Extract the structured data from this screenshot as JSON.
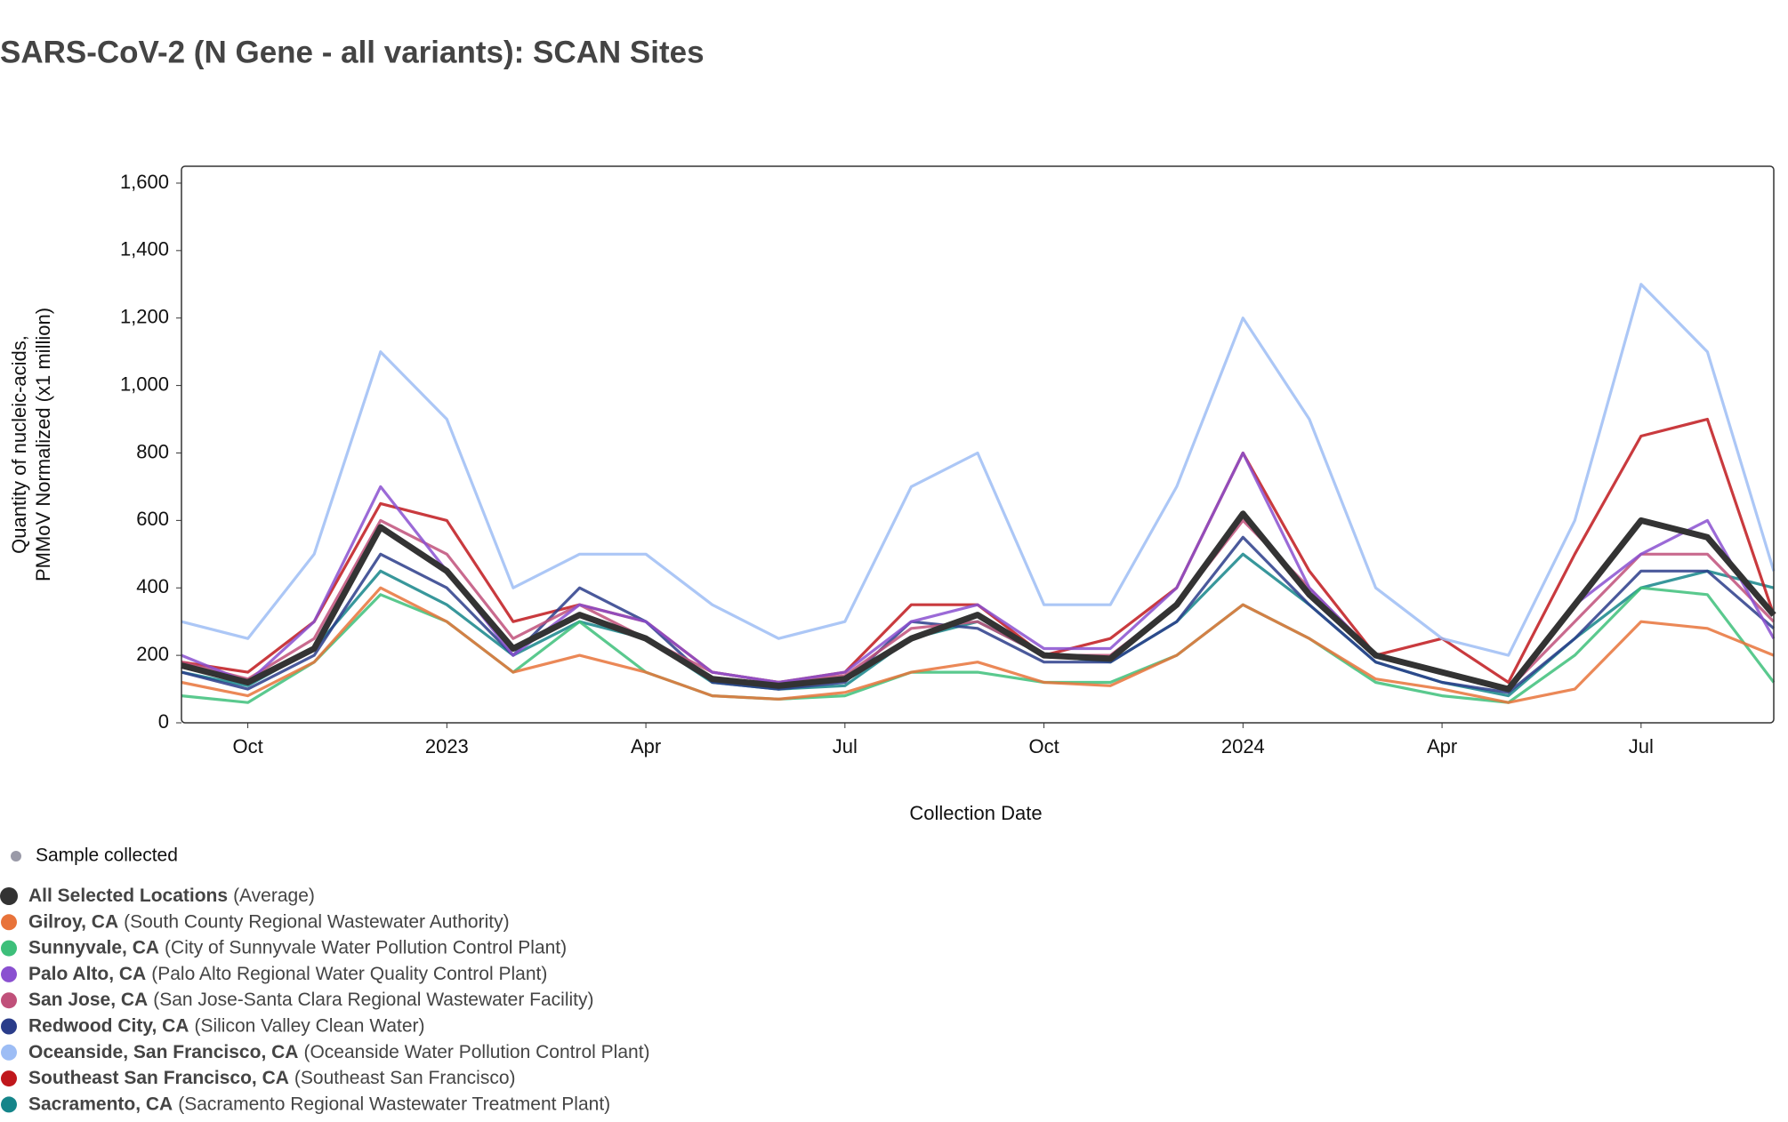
{
  "chart_data": {
    "type": "line",
    "title": "SARS-CoV-2 (N Gene - all variants): SCAN Sites",
    "x_label": "Collection Date",
    "y_label": [
      "Quantity of nucleic-acids,",
      "PMMoV Normalized (x1 million)"
    ],
    "marker_legend": "Sample collected",
    "x": [
      "2022-09",
      "2022-10",
      "2022-11",
      "2022-12",
      "2023-01",
      "2023-02",
      "2023-03",
      "2023-04",
      "2023-05",
      "2023-06",
      "2023-07",
      "2023-08",
      "2023-09",
      "2023-10",
      "2023-11",
      "2023-12",
      "2024-01",
      "2024-02",
      "2024-03",
      "2024-04",
      "2024-05",
      "2024-06",
      "2024-07",
      "2024-08",
      "2024-09"
    ],
    "xlim": [
      "2022-09",
      "2024-09"
    ],
    "xticks": [
      {
        "value": "2022-10",
        "label": "Oct"
      },
      {
        "value": "2023-01",
        "label": "2023"
      },
      {
        "value": "2023-04",
        "label": "Apr"
      },
      {
        "value": "2023-07",
        "label": "Jul"
      },
      {
        "value": "2023-10",
        "label": "Oct"
      },
      {
        "value": "2024-01",
        "label": "2024"
      },
      {
        "value": "2024-04",
        "label": "Apr"
      },
      {
        "value": "2024-07",
        "label": "Jul"
      }
    ],
    "ylim": [
      0,
      1650
    ],
    "yticks": [
      0,
      200,
      400,
      600,
      800,
      {
        "value": 1000,
        "label": "1,000"
      },
      {
        "value": 1200,
        "label": "1,200"
      },
      {
        "value": 1400,
        "label": "1,400"
      },
      {
        "value": 1600,
        "label": "1,600"
      }
    ],
    "grid": false,
    "series": [
      {
        "name": "All Selected Locations",
        "detail": "(Average)",
        "color": "#333333",
        "values": [
          170,
          120,
          220,
          580,
          450,
          220,
          320,
          250,
          130,
          110,
          130,
          250,
          320,
          200,
          190,
          350,
          620,
          380,
          200,
          150,
          100,
          350,
          600,
          550,
          320
        ]
      },
      {
        "name": "Gilroy, CA",
        "detail": "(South County Regional Wastewater Authority)",
        "color": "#e8733a",
        "values": [
          120,
          80,
          180,
          400,
          300,
          150,
          200,
          150,
          80,
          70,
          90,
          150,
          180,
          120,
          110,
          200,
          350,
          250,
          130,
          100,
          60,
          100,
          300,
          280,
          200
        ]
      },
      {
        "name": "Sunnyvale, CA",
        "detail": "(City of Sunnyvale Water Pollution Control Plant)",
        "color": "#3dbf7a",
        "values": [
          80,
          60,
          180,
          380,
          300,
          150,
          300,
          150,
          80,
          70,
          80,
          150,
          150,
          120,
          120,
          200,
          350,
          250,
          120,
          80,
          60,
          200,
          400,
          380,
          120
        ]
      },
      {
        "name": "Palo Alto, CA",
        "detail": "(Palo Alto Regional Water Quality Control Plant)",
        "color": "#8a50d0",
        "values": [
          200,
          120,
          300,
          700,
          450,
          200,
          350,
          300,
          150,
          120,
          150,
          300,
          350,
          220,
          220,
          400,
          800,
          400,
          200,
          150,
          100,
          350,
          500,
          600,
          250
        ]
      },
      {
        "name": "San Jose, CA",
        "detail": "(San Jose-Santa Clara Regional Wastewater Facility)",
        "color": "#c0507a",
        "values": [
          180,
          130,
          250,
          600,
          500,
          250,
          350,
          250,
          150,
          120,
          140,
          280,
          300,
          200,
          200,
          350,
          600,
          400,
          200,
          150,
          100,
          300,
          500,
          500,
          300
        ]
      },
      {
        "name": "Redwood City, CA",
        "detail": "(Silicon Valley Clean Water)",
        "color": "#2a3c8a",
        "values": [
          150,
          100,
          200,
          500,
          400,
          200,
          400,
          300,
          120,
          100,
          120,
          300,
          280,
          180,
          180,
          300,
          550,
          350,
          180,
          120,
          90,
          250,
          450,
          450,
          280
        ]
      },
      {
        "name": "Oceanside, San Francisco, CA",
        "detail": "(Oceanside Water Pollution Control Plant)",
        "color": "#9dbdf5",
        "values": [
          300,
          250,
          500,
          1100,
          900,
          400,
          500,
          500,
          350,
          250,
          300,
          700,
          800,
          350,
          350,
          700,
          1200,
          900,
          400,
          250,
          200,
          600,
          1300,
          1100,
          450
        ]
      },
      {
        "name": "Southeast San Francisco, CA",
        "detail": "(Southeast San Francisco)",
        "color": "#c0171c",
        "values": [
          180,
          150,
          300,
          650,
          600,
          300,
          350,
          300,
          150,
          120,
          150,
          350,
          350,
          200,
          250,
          400,
          800,
          450,
          200,
          250,
          120,
          500,
          850,
          900,
          320
        ]
      },
      {
        "name": "Sacramento, CA",
        "detail": "(Sacramento Regional Wastewater Treatment Plant)",
        "color": "#15858a",
        "values": [
          150,
          110,
          220,
          450,
          350,
          200,
          300,
          250,
          120,
          100,
          110,
          250,
          300,
          200,
          180,
          300,
          500,
          350,
          180,
          120,
          80,
          250,
          400,
          450,
          400
        ]
      }
    ]
  }
}
